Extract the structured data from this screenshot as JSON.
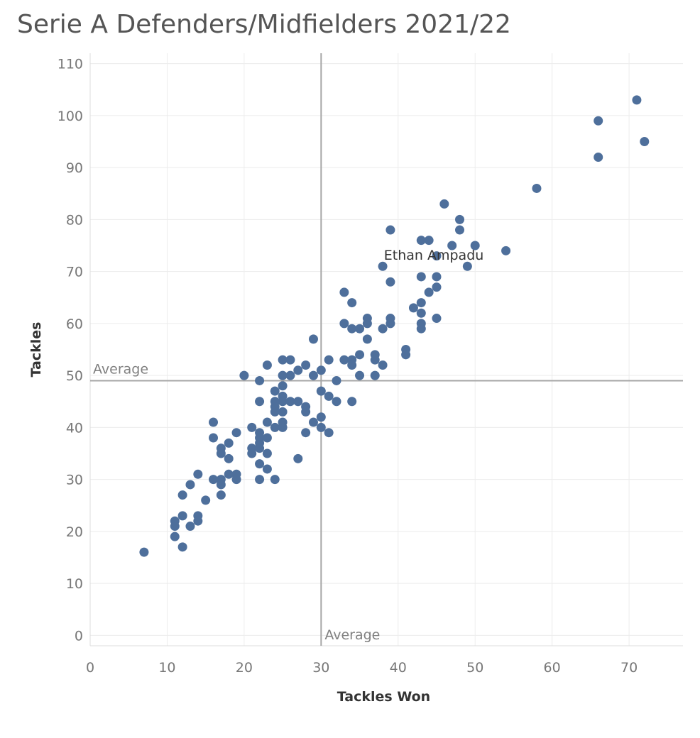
{
  "chart_data": {
    "type": "scatter",
    "title": "Serie A Defenders/Midfielders 2021/22",
    "xlabel": "Tackles Won",
    "ylabel": "Tackles",
    "xlim": [
      0,
      77
    ],
    "ylim": [
      -2,
      112
    ],
    "x_ticks": [
      0,
      10,
      20,
      30,
      40,
      50,
      60,
      70
    ],
    "y_ticks": [
      0,
      10,
      20,
      30,
      40,
      50,
      60,
      70,
      80,
      90,
      100,
      110
    ],
    "grid": true,
    "marker_color": "#4e6f9b",
    "reference_lines": [
      {
        "axis": "x",
        "value": 30,
        "label": "Average"
      },
      {
        "axis": "y",
        "value": 49,
        "label": "Average"
      }
    ],
    "annotations": [
      {
        "text": "Ethan Ampadu",
        "x": 40,
        "y": 72
      }
    ],
    "series": [
      {
        "points": [
          [
            7,
            16
          ],
          [
            11,
            22
          ],
          [
            11,
            21
          ],
          [
            11,
            19
          ],
          [
            12,
            27
          ],
          [
            12,
            23
          ],
          [
            12,
            17
          ],
          [
            13,
            29
          ],
          [
            13,
            21
          ],
          [
            14,
            31
          ],
          [
            14,
            23
          ],
          [
            14,
            22
          ],
          [
            15,
            26
          ],
          [
            16,
            41
          ],
          [
            16,
            38
          ],
          [
            16,
            30
          ],
          [
            17,
            36
          ],
          [
            17,
            35
          ],
          [
            17,
            30
          ],
          [
            17,
            29
          ],
          [
            17,
            27
          ],
          [
            18,
            37
          ],
          [
            18,
            34
          ],
          [
            18,
            31
          ],
          [
            19,
            39
          ],
          [
            19,
            31
          ],
          [
            19,
            30
          ],
          [
            20,
            50
          ],
          [
            21,
            40
          ],
          [
            21,
            36
          ],
          [
            21,
            35
          ],
          [
            22,
            49
          ],
          [
            22,
            45
          ],
          [
            22,
            39
          ],
          [
            22,
            38
          ],
          [
            22,
            37
          ],
          [
            22,
            36
          ],
          [
            22,
            33
          ],
          [
            22,
            30
          ],
          [
            23,
            52
          ],
          [
            23,
            41
          ],
          [
            23,
            38
          ],
          [
            23,
            35
          ],
          [
            23,
            32
          ],
          [
            24,
            47
          ],
          [
            24,
            45
          ],
          [
            24,
            44
          ],
          [
            24,
            43
          ],
          [
            24,
            40
          ],
          [
            24,
            30
          ],
          [
            25,
            53
          ],
          [
            25,
            50
          ],
          [
            25,
            48
          ],
          [
            25,
            46
          ],
          [
            25,
            45
          ],
          [
            25,
            43
          ],
          [
            25,
            41
          ],
          [
            25,
            40
          ],
          [
            26,
            53
          ],
          [
            26,
            50
          ],
          [
            26,
            45
          ],
          [
            27,
            51
          ],
          [
            27,
            45
          ],
          [
            27,
            34
          ],
          [
            28,
            52
          ],
          [
            28,
            44
          ],
          [
            28,
            43
          ],
          [
            28,
            39
          ],
          [
            29,
            57
          ],
          [
            29,
            50
          ],
          [
            29,
            41
          ],
          [
            30,
            51
          ],
          [
            30,
            47
          ],
          [
            30,
            42
          ],
          [
            30,
            40
          ],
          [
            31,
            53
          ],
          [
            31,
            46
          ],
          [
            31,
            39
          ],
          [
            32,
            49
          ],
          [
            32,
            45
          ],
          [
            33,
            66
          ],
          [
            33,
            60
          ],
          [
            33,
            53
          ],
          [
            34,
            64
          ],
          [
            34,
            59
          ],
          [
            34,
            53
          ],
          [
            34,
            52
          ],
          [
            34,
            45
          ],
          [
            35,
            59
          ],
          [
            35,
            54
          ],
          [
            35,
            50
          ],
          [
            36,
            61
          ],
          [
            36,
            60
          ],
          [
            36,
            57
          ],
          [
            37,
            54
          ],
          [
            37,
            53
          ],
          [
            37,
            50
          ],
          [
            38,
            71
          ],
          [
            38,
            59
          ],
          [
            38,
            52
          ],
          [
            39,
            78
          ],
          [
            39,
            68
          ],
          [
            39,
            61
          ],
          [
            39,
            60
          ],
          [
            41,
            55
          ],
          [
            41,
            54
          ],
          [
            42,
            63
          ],
          [
            43,
            76
          ],
          [
            43,
            69
          ],
          [
            43,
            64
          ],
          [
            43,
            62
          ],
          [
            43,
            60
          ],
          [
            43,
            59
          ],
          [
            44,
            76
          ],
          [
            44,
            66
          ],
          [
            45,
            73
          ],
          [
            45,
            69
          ],
          [
            45,
            67
          ],
          [
            45,
            61
          ],
          [
            46,
            83
          ],
          [
            47,
            75
          ],
          [
            48,
            80
          ],
          [
            48,
            78
          ],
          [
            49,
            71
          ],
          [
            50,
            75
          ],
          [
            54,
            74
          ],
          [
            58,
            86
          ],
          [
            66,
            99
          ],
          [
            66,
            92
          ],
          [
            71,
            103
          ],
          [
            72,
            95
          ]
        ]
      }
    ]
  }
}
